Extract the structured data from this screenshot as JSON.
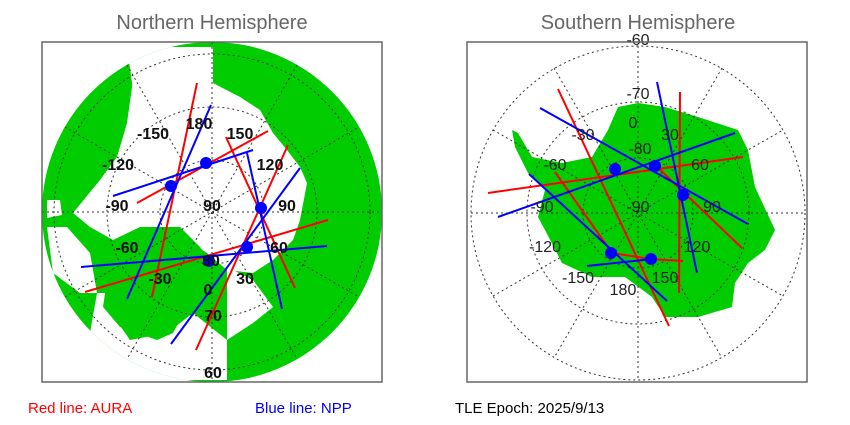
{
  "north": {
    "title": "Northern Hemisphere",
    "lon_labels": [
      "180",
      "-150",
      "150",
      "-120",
      "120",
      "-90",
      "90",
      "-60",
      "60",
      "-30",
      "30",
      "0"
    ],
    "lat_labels": [
      "90",
      "80",
      "70",
      "60"
    ]
  },
  "south": {
    "title": "Southern Hemisphere",
    "lon_labels": [
      "0",
      "-30",
      "30",
      "-60",
      "60",
      "-90",
      "90",
      "-120",
      "120",
      "-150",
      "150",
      "180"
    ],
    "lat_labels": [
      "-60",
      "-70",
      "-80",
      "-90"
    ]
  },
  "legend": {
    "red": "Red line: AURA",
    "blue": "Blue line: NPP",
    "epoch": "TLE Epoch: 2025/9/13"
  },
  "colors": {
    "land": "#00cc00",
    "aura": "#ff0000",
    "npp": "#0000ff",
    "title": "#666666"
  }
}
